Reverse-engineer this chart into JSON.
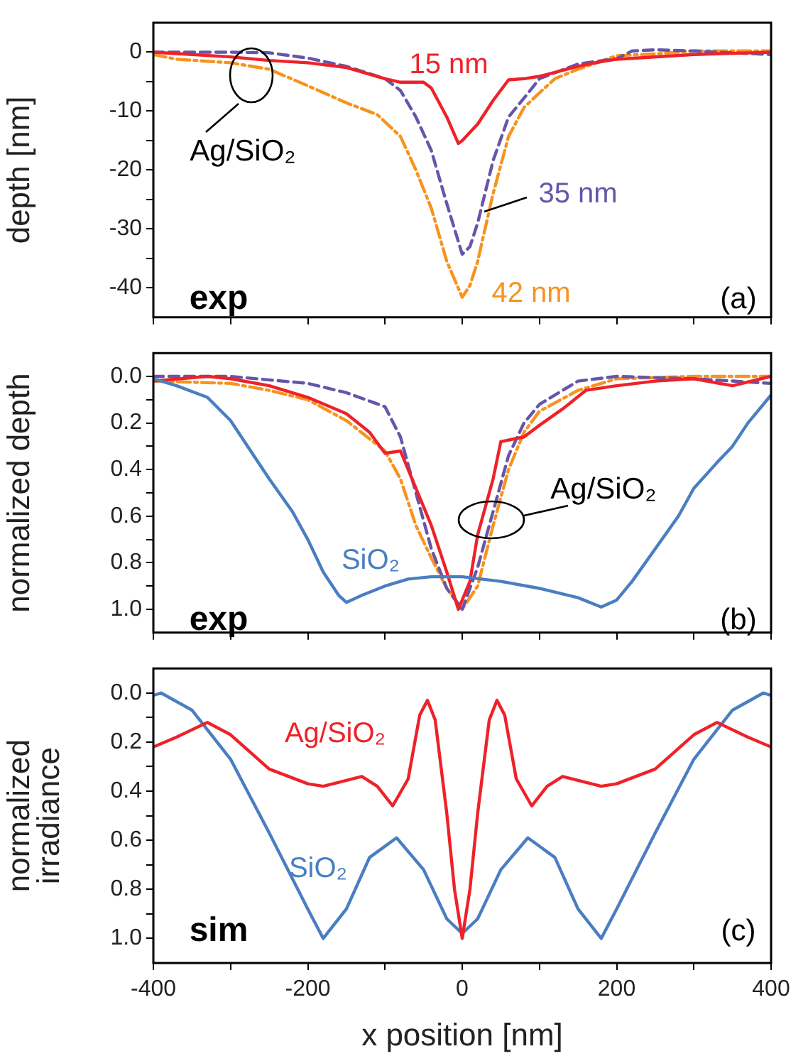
{
  "chart_data": [
    {
      "type": "line",
      "ylabel": "depth [nm]",
      "xlim": [
        -400,
        400
      ],
      "xticks": [
        {
          "value": -400,
          "label": null
        },
        {
          "value": -300,
          "label": null
        },
        {
          "value": -200,
          "label": null
        },
        {
          "value": -100,
          "label": null
        },
        {
          "value": 0,
          "label": null
        },
        {
          "value": 100,
          "label": null
        },
        {
          "value": 200,
          "label": null
        },
        {
          "value": 300,
          "label": null
        },
        {
          "value": 400,
          "label": null
        }
      ],
      "ylim": [
        -45,
        5
      ],
      "yticks": [
        -40,
        {
          "value": -35,
          "label": null
        },
        -30,
        {
          "value": -25,
          "label": null
        },
        -20,
        {
          "value": -15,
          "label": null
        },
        -10,
        {
          "value": -5,
          "label": null
        },
        0
      ],
      "tick_labels": "y",
      "grid": false,
      "legend": false,
      "marker": "none",
      "annotations": [
        "exp",
        "(a)",
        "Ag/SiO₂"
      ],
      "series": [
        {
          "name": "15 nm",
          "color": "#ee2229",
          "line_style": "solid",
          "x": [
            -400,
            -300,
            -250,
            -200,
            -150,
            -100,
            -80,
            -50,
            -40,
            -20,
            -5,
            0,
            20,
            40,
            60,
            80,
            100,
            150,
            180,
            200,
            300,
            400
          ],
          "values": [
            0,
            -0.8,
            -1.4,
            -1.8,
            -2.6,
            -4.5,
            -5.1,
            -5.1,
            -6.1,
            -11,
            -15.5,
            -15,
            -12.2,
            -8.2,
            -4.7,
            -4.5,
            -4.1,
            -2.4,
            -1.6,
            -1.2,
            -0.4,
            0
          ]
        },
        {
          "name": "35 nm",
          "color": "#6655aa",
          "line_style": "dashed",
          "x": [
            -400,
            -300,
            -250,
            -200,
            -150,
            -100,
            -80,
            -60,
            -40,
            -20,
            0,
            10,
            20,
            40,
            60,
            80,
            100,
            150,
            200,
            220,
            250,
            300,
            400
          ],
          "values": [
            0,
            0,
            -0.1,
            -1,
            -2.4,
            -4.5,
            -6.5,
            -11,
            -16.7,
            -25.7,
            -34.3,
            -33,
            -29,
            -18.4,
            -11,
            -7.8,
            -4.5,
            -2,
            -1.1,
            0.2,
            0.4,
            0.2,
            -0.4
          ]
        },
        {
          "name": "42 nm",
          "color": "#f7931e",
          "line_style": "dashdot",
          "x": [
            -400,
            -370,
            -300,
            -250,
            -200,
            -150,
            -110,
            -80,
            -60,
            -40,
            -20,
            0,
            10,
            20,
            40,
            60,
            80,
            100,
            120,
            150,
            200,
            250,
            300,
            400
          ],
          "values": [
            -0.4,
            -1.2,
            -1.8,
            -2.9,
            -5.7,
            -8.6,
            -10.6,
            -14.3,
            -20,
            -26.5,
            -35.5,
            -41.6,
            -39.6,
            -35.5,
            -24,
            -14.3,
            -9.4,
            -6.9,
            -4.5,
            -2.9,
            -0.6,
            -0.3,
            0.2,
            0.2
          ]
        }
      ]
    },
    {
      "type": "line",
      "ylabel": "normalized depth",
      "xlim": [
        -400,
        400
      ],
      "xticks": [
        {
          "value": -400,
          "label": null
        },
        {
          "value": -300,
          "label": null
        },
        {
          "value": -200,
          "label": null
        },
        {
          "value": -100,
          "label": null
        },
        {
          "value": 0,
          "label": null
        },
        {
          "value": 100,
          "label": null
        },
        {
          "value": 200,
          "label": null
        },
        {
          "value": 300,
          "label": null
        },
        {
          "value": 400,
          "label": null
        }
      ],
      "ylim": [
        1.1,
        -0.1
      ],
      "yticks": [
        {
          "value": 0,
          "label": "0.0"
        },
        {
          "value": 0.1,
          "label": null
        },
        0.2,
        {
          "value": 0.3,
          "label": null
        },
        0.4,
        {
          "value": 0.5,
          "label": null
        },
        0.6,
        {
          "value": 0.7,
          "label": null
        },
        0.8,
        {
          "value": 0.9,
          "label": null
        },
        {
          "value": 1,
          "label": "1.0"
        }
      ],
      "tick_labels": "y",
      "grid": false,
      "legend": false,
      "marker": "none",
      "annotations": [
        "exp",
        "(b)",
        "Ag/SiO₂"
      ],
      "series": [
        {
          "name": "SiO₂",
          "color": "#4a7ec2",
          "line_style": "solid",
          "x": [
            -400,
            -370,
            -330,
            -300,
            -270,
            -250,
            -220,
            -200,
            -180,
            -160,
            -150,
            -130,
            -100,
            -70,
            -40,
            0,
            50,
            100,
            150,
            180,
            200,
            220,
            250,
            280,
            300,
            330,
            350,
            370,
            400
          ],
          "values": [
            0.01,
            0.04,
            0.09,
            0.19,
            0.34,
            0.44,
            0.58,
            0.7,
            0.84,
            0.94,
            0.97,
            0.94,
            0.9,
            0.87,
            0.86,
            0.86,
            0.88,
            0.91,
            0.95,
            0.99,
            0.96,
            0.88,
            0.74,
            0.6,
            0.48,
            0.37,
            0.3,
            0.2,
            0.08
          ]
        },
        {
          "color": "#ee2229",
          "line_style": "solid",
          "x": [
            -400,
            -330,
            -300,
            -250,
            -200,
            -150,
            -120,
            -100,
            -80,
            -60,
            -40,
            -20,
            -5,
            10,
            20,
            40,
            50,
            80,
            100,
            130,
            160,
            200,
            250,
            300,
            350,
            400
          ],
          "values": [
            0.02,
            0,
            0.01,
            0.04,
            0.09,
            0.16,
            0.24,
            0.33,
            0.32,
            0.48,
            0.64,
            0.84,
            1,
            0.88,
            0.68,
            0.44,
            0.28,
            0.26,
            0.21,
            0.14,
            0.06,
            0.04,
            0.02,
            0.01,
            0.04,
            0
          ]
        },
        {
          "color": "#6655aa",
          "line_style": "dashed",
          "x": [
            -400,
            -300,
            -200,
            -150,
            -100,
            -80,
            -60,
            -40,
            -20,
            0,
            20,
            40,
            60,
            80,
            100,
            150,
            200,
            300,
            400
          ],
          "values": [
            0,
            0,
            0.03,
            0.07,
            0.13,
            0.26,
            0.5,
            0.74,
            0.91,
            1,
            0.82,
            0.58,
            0.34,
            0.2,
            0.12,
            0.02,
            0,
            0.01,
            0.03
          ]
        },
        {
          "color": "#f7931e",
          "line_style": "dashdot",
          "x": [
            -400,
            -300,
            -250,
            -200,
            -150,
            -100,
            -80,
            -60,
            -40,
            -20,
            0,
            20,
            40,
            60,
            80,
            100,
            150,
            200,
            300,
            400
          ],
          "values": [
            0.02,
            0.03,
            0.06,
            0.1,
            0.19,
            0.32,
            0.44,
            0.64,
            0.78,
            0.91,
            1,
            0.9,
            0.64,
            0.4,
            0.24,
            0.15,
            0.06,
            0.01,
            0,
            0
          ]
        }
      ]
    },
    {
      "type": "line",
      "xlabel": "x position [nm]",
      "ylabel": "normalized irradiance",
      "xlim": [
        -400,
        400
      ],
      "xticks": [
        -400,
        {
          "value": -300,
          "label": null
        },
        -200,
        {
          "value": -100,
          "label": null
        },
        0,
        {
          "value": 100,
          "label": null
        },
        200,
        {
          "value": 300,
          "label": null
        },
        400
      ],
      "ylim": [
        1.1,
        -0.1
      ],
      "yticks": [
        {
          "value": 0,
          "label": "0.0"
        },
        {
          "value": 0.1,
          "label": null
        },
        0.2,
        {
          "value": 0.3,
          "label": null
        },
        0.4,
        {
          "value": 0.5,
          "label": null
        },
        0.6,
        {
          "value": 0.7,
          "label": null
        },
        0.8,
        {
          "value": 0.9,
          "label": null
        },
        {
          "value": 1,
          "label": "1.0"
        }
      ],
      "grid": false,
      "legend": false,
      "marker": "none",
      "annotations": [
        "sim",
        "(c)"
      ],
      "series": [
        {
          "name": "Ag/SiO₂",
          "color": "#ee2229",
          "line_style": "solid",
          "x": [
            -400,
            -370,
            -330,
            -300,
            -250,
            -200,
            -180,
            -130,
            -110,
            -90,
            -70,
            -55,
            -45,
            -35,
            -20,
            -10,
            0,
            10,
            20,
            35,
            45,
            55,
            70,
            90,
            110,
            130,
            180,
            200,
            250,
            300,
            330,
            370,
            400
          ],
          "values": [
            0.22,
            0.18,
            0.12,
            0.17,
            0.31,
            0.37,
            0.38,
            0.34,
            0.38,
            0.46,
            0.35,
            0.09,
            0.03,
            0.11,
            0.49,
            0.8,
            1,
            0.8,
            0.49,
            0.11,
            0.03,
            0.09,
            0.35,
            0.46,
            0.38,
            0.34,
            0.38,
            0.37,
            0.31,
            0.17,
            0.12,
            0.18,
            0.22
          ]
        },
        {
          "name": "SiO₂",
          "color": "#4a7ec2",
          "line_style": "solid",
          "x": [
            -400,
            -390,
            -350,
            -300,
            -250,
            -200,
            -180,
            -150,
            -120,
            -85,
            -50,
            -20,
            0,
            20,
            50,
            85,
            120,
            150,
            180,
            200,
            250,
            300,
            350,
            390,
            400
          ],
          "values": [
            0.01,
            0,
            0.07,
            0.27,
            0.57,
            0.88,
            1,
            0.88,
            0.67,
            0.59,
            0.72,
            0.92,
            0.98,
            0.92,
            0.72,
            0.59,
            0.67,
            0.88,
            1,
            0.88,
            0.57,
            0.27,
            0.07,
            0,
            0.01
          ]
        }
      ]
    }
  ]
}
